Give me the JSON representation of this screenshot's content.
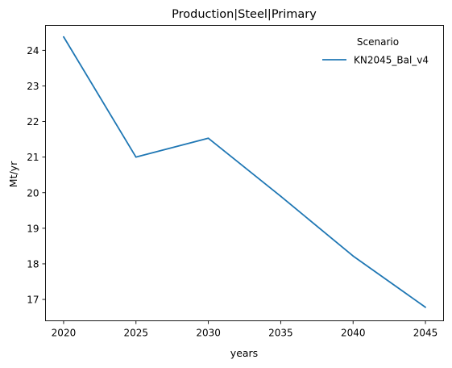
{
  "chart_data": {
    "type": "line",
    "title": "Production|Steel|Primary",
    "xlabel": "years",
    "ylabel": "Mt/yr",
    "x": [
      2020,
      2025,
      2030,
      2035,
      2040,
      2045
    ],
    "series": [
      {
        "name": "KN2045_Bal_v4",
        "color": "#1f77b4",
        "values": [
          24.38,
          21.0,
          21.53,
          19.9,
          18.22,
          16.78
        ]
      }
    ],
    "xticks": [
      2020,
      2025,
      2030,
      2035,
      2040,
      2045
    ],
    "yticks": [
      17,
      18,
      19,
      20,
      21,
      22,
      23,
      24
    ],
    "xlim": [
      2018.75,
      2046.25
    ],
    "ylim": [
      16.4,
      24.7
    ],
    "grid": false,
    "legend": {
      "title": "Scenario",
      "placement": "top-right",
      "frame": false
    }
  }
}
